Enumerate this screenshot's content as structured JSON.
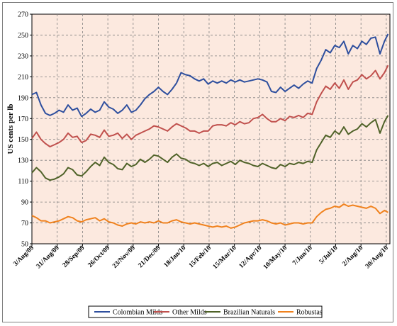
{
  "chart_data": {
    "type": "line",
    "ylabel": "US cents per lb",
    "xlabel": "",
    "title": "",
    "ylim": [
      50,
      270
    ],
    "yticks": [
      50,
      70,
      90,
      110,
      130,
      150,
      170,
      190,
      210,
      230,
      250,
      270
    ],
    "grid": true,
    "legend_position": "bottom",
    "x_tick_labels": [
      "3/Aug/09",
      "31/Aug/09",
      "28/Sep/09",
      "26/Oct/09",
      "23/Nov/09",
      "21/Dec/09",
      "18/Jan/10",
      "15/Feb/10",
      "15/Mar/10",
      "12/Apr/10",
      "10/May/10",
      "7/Jun/10",
      "5/Jul/10",
      "2/Aug/10",
      "30/Aug/10"
    ],
    "x_tick_days": [
      0,
      28,
      56,
      84,
      112,
      140,
      168,
      196,
      224,
      252,
      280,
      308,
      336,
      364,
      392
    ],
    "x_range_days": [
      0,
      396
    ],
    "series": [
      {
        "name": "Colombian Milds",
        "color": "#2e4f9e",
        "points": [
          [
            0,
            193
          ],
          [
            5,
            195
          ],
          [
            10,
            183
          ],
          [
            15,
            175
          ],
          [
            20,
            173
          ],
          [
            25,
            175
          ],
          [
            30,
            178
          ],
          [
            35,
            176
          ],
          [
            40,
            183
          ],
          [
            45,
            178
          ],
          [
            50,
            180
          ],
          [
            55,
            172
          ],
          [
            60,
            175
          ],
          [
            65,
            179
          ],
          [
            70,
            176
          ],
          [
            75,
            178
          ],
          [
            80,
            186
          ],
          [
            85,
            181
          ],
          [
            90,
            179
          ],
          [
            95,
            175
          ],
          [
            100,
            178
          ],
          [
            105,
            183
          ],
          [
            110,
            176
          ],
          [
            115,
            178
          ],
          [
            120,
            183
          ],
          [
            125,
            189
          ],
          [
            130,
            193
          ],
          [
            135,
            196
          ],
          [
            140,
            200
          ],
          [
            145,
            196
          ],
          [
            150,
            193
          ],
          [
            155,
            198
          ],
          [
            160,
            204
          ],
          [
            165,
            214
          ],
          [
            170,
            212
          ],
          [
            175,
            211
          ],
          [
            180,
            208
          ],
          [
            185,
            206
          ],
          [
            190,
            208
          ],
          [
            195,
            203
          ],
          [
            200,
            206
          ],
          [
            205,
            204
          ],
          [
            210,
            206
          ],
          [
            215,
            204
          ],
          [
            220,
            207
          ],
          [
            225,
            205
          ],
          [
            230,
            207
          ],
          [
            235,
            205
          ],
          [
            240,
            206
          ],
          [
            245,
            207
          ],
          [
            250,
            208
          ],
          [
            255,
            207
          ],
          [
            260,
            205
          ],
          [
            265,
            196
          ],
          [
            270,
            195
          ],
          [
            275,
            200
          ],
          [
            280,
            196
          ],
          [
            285,
            199
          ],
          [
            290,
            202
          ],
          [
            295,
            199
          ],
          [
            300,
            203
          ],
          [
            305,
            206
          ],
          [
            310,
            204
          ],
          [
            315,
            218
          ],
          [
            320,
            226
          ],
          [
            325,
            236
          ],
          [
            330,
            233
          ],
          [
            335,
            240
          ],
          [
            340,
            238
          ],
          [
            345,
            244
          ],
          [
            350,
            232
          ],
          [
            355,
            240
          ],
          [
            360,
            237
          ],
          [
            365,
            244
          ],
          [
            370,
            241
          ],
          [
            375,
            247
          ],
          [
            380,
            248
          ],
          [
            385,
            232
          ],
          [
            390,
            244
          ],
          [
            394,
            251
          ]
        ]
      },
      {
        "name": "Other Milds",
        "color": "#c0504d",
        "points": [
          [
            0,
            151
          ],
          [
            5,
            157
          ],
          [
            10,
            150
          ],
          [
            15,
            146
          ],
          [
            20,
            143
          ],
          [
            25,
            145
          ],
          [
            30,
            147
          ],
          [
            35,
            150
          ],
          [
            40,
            156
          ],
          [
            45,
            152
          ],
          [
            50,
            153
          ],
          [
            55,
            147
          ],
          [
            60,
            149
          ],
          [
            65,
            155
          ],
          [
            70,
            154
          ],
          [
            75,
            152
          ],
          [
            80,
            159
          ],
          [
            85,
            153
          ],
          [
            90,
            154
          ],
          [
            95,
            156
          ],
          [
            100,
            151
          ],
          [
            105,
            155
          ],
          [
            110,
            150
          ],
          [
            115,
            154
          ],
          [
            120,
            156
          ],
          [
            125,
            158
          ],
          [
            130,
            160
          ],
          [
            135,
            163
          ],
          [
            140,
            162
          ],
          [
            145,
            160
          ],
          [
            150,
            158
          ],
          [
            155,
            162
          ],
          [
            160,
            165
          ],
          [
            165,
            163
          ],
          [
            170,
            161
          ],
          [
            175,
            158
          ],
          [
            180,
            158
          ],
          [
            185,
            156
          ],
          [
            190,
            158
          ],
          [
            195,
            158
          ],
          [
            200,
            163
          ],
          [
            205,
            164
          ],
          [
            210,
            164
          ],
          [
            215,
            163
          ],
          [
            220,
            166
          ],
          [
            225,
            164
          ],
          [
            230,
            167
          ],
          [
            235,
            165
          ],
          [
            240,
            166
          ],
          [
            245,
            170
          ],
          [
            250,
            171
          ],
          [
            255,
            174
          ],
          [
            260,
            170
          ],
          [
            265,
            167
          ],
          [
            270,
            167
          ],
          [
            275,
            170
          ],
          [
            280,
            168
          ],
          [
            285,
            172
          ],
          [
            290,
            171
          ],
          [
            295,
            173
          ],
          [
            300,
            171
          ],
          [
            305,
            175
          ],
          [
            310,
            174
          ],
          [
            315,
            186
          ],
          [
            320,
            194
          ],
          [
            325,
            201
          ],
          [
            330,
            198
          ],
          [
            335,
            204
          ],
          [
            340,
            199
          ],
          [
            345,
            207
          ],
          [
            350,
            198
          ],
          [
            355,
            205
          ],
          [
            360,
            207
          ],
          [
            365,
            212
          ],
          [
            370,
            208
          ],
          [
            375,
            211
          ],
          [
            380,
            216
          ],
          [
            385,
            208
          ],
          [
            390,
            214
          ],
          [
            394,
            221
          ]
        ]
      },
      {
        "name": "Brazilian Naturals",
        "color": "#4f6228",
        "points": [
          [
            0,
            118
          ],
          [
            5,
            123
          ],
          [
            10,
            119
          ],
          [
            15,
            113
          ],
          [
            20,
            111
          ],
          [
            25,
            112
          ],
          [
            30,
            114
          ],
          [
            35,
            117
          ],
          [
            40,
            123
          ],
          [
            45,
            121
          ],
          [
            50,
            116
          ],
          [
            55,
            115
          ],
          [
            60,
            119
          ],
          [
            65,
            124
          ],
          [
            70,
            128
          ],
          [
            75,
            125
          ],
          [
            80,
            133
          ],
          [
            85,
            128
          ],
          [
            90,
            126
          ],
          [
            95,
            122
          ],
          [
            100,
            121
          ],
          [
            105,
            127
          ],
          [
            110,
            124
          ],
          [
            115,
            126
          ],
          [
            120,
            131
          ],
          [
            125,
            128
          ],
          [
            130,
            131
          ],
          [
            135,
            135
          ],
          [
            140,
            134
          ],
          [
            145,
            131
          ],
          [
            150,
            128
          ],
          [
            155,
            133
          ],
          [
            160,
            136
          ],
          [
            165,
            132
          ],
          [
            170,
            131
          ],
          [
            175,
            128
          ],
          [
            180,
            127
          ],
          [
            185,
            125
          ],
          [
            190,
            127
          ],
          [
            195,
            124
          ],
          [
            200,
            127
          ],
          [
            205,
            128
          ],
          [
            210,
            125
          ],
          [
            215,
            127
          ],
          [
            220,
            129
          ],
          [
            225,
            126
          ],
          [
            230,
            130
          ],
          [
            235,
            128
          ],
          [
            240,
            127
          ],
          [
            245,
            125
          ],
          [
            250,
            124
          ],
          [
            255,
            127
          ],
          [
            260,
            125
          ],
          [
            265,
            123
          ],
          [
            270,
            122
          ],
          [
            275,
            126
          ],
          [
            280,
            124
          ],
          [
            285,
            127
          ],
          [
            290,
            126
          ],
          [
            295,
            128
          ],
          [
            300,
            127
          ],
          [
            305,
            129
          ],
          [
            310,
            128
          ],
          [
            315,
            140
          ],
          [
            320,
            147
          ],
          [
            325,
            154
          ],
          [
            330,
            152
          ],
          [
            335,
            158
          ],
          [
            340,
            155
          ],
          [
            345,
            162
          ],
          [
            350,
            155
          ],
          [
            355,
            158
          ],
          [
            360,
            160
          ],
          [
            365,
            165
          ],
          [
            370,
            162
          ],
          [
            375,
            166
          ],
          [
            380,
            169
          ],
          [
            385,
            156
          ],
          [
            390,
            167
          ],
          [
            394,
            173
          ]
        ]
      },
      {
        "name": "Robustas",
        "color": "#f0821e",
        "points": [
          [
            0,
            77
          ],
          [
            5,
            75
          ],
          [
            10,
            72
          ],
          [
            15,
            72
          ],
          [
            20,
            70
          ],
          [
            25,
            71
          ],
          [
            30,
            72
          ],
          [
            35,
            74
          ],
          [
            40,
            76
          ],
          [
            45,
            75
          ],
          [
            50,
            72
          ],
          [
            55,
            71
          ],
          [
            60,
            73
          ],
          [
            65,
            74
          ],
          [
            70,
            75
          ],
          [
            75,
            72
          ],
          [
            80,
            74
          ],
          [
            85,
            71
          ],
          [
            90,
            70
          ],
          [
            95,
            68
          ],
          [
            100,
            67
          ],
          [
            105,
            69
          ],
          [
            110,
            70
          ],
          [
            115,
            69
          ],
          [
            120,
            71
          ],
          [
            125,
            70
          ],
          [
            130,
            71
          ],
          [
            135,
            70
          ],
          [
            140,
            72
          ],
          [
            145,
            70
          ],
          [
            150,
            70
          ],
          [
            155,
            72
          ],
          [
            160,
            73
          ],
          [
            165,
            71
          ],
          [
            170,
            70
          ],
          [
            175,
            69
          ],
          [
            180,
            70
          ],
          [
            185,
            69
          ],
          [
            190,
            68
          ],
          [
            195,
            67
          ],
          [
            200,
            66
          ],
          [
            205,
            67
          ],
          [
            210,
            66
          ],
          [
            215,
            67
          ],
          [
            220,
            65
          ],
          [
            225,
            66
          ],
          [
            230,
            68
          ],
          [
            235,
            70
          ],
          [
            240,
            71
          ],
          [
            245,
            72
          ],
          [
            250,
            72
          ],
          [
            255,
            73
          ],
          [
            260,
            72
          ],
          [
            265,
            70
          ],
          [
            270,
            69
          ],
          [
            275,
            70
          ],
          [
            280,
            68
          ],
          [
            285,
            69
          ],
          [
            290,
            70
          ],
          [
            295,
            70
          ],
          [
            300,
            69
          ],
          [
            305,
            70
          ],
          [
            310,
            70
          ],
          [
            315,
            76
          ],
          [
            320,
            80
          ],
          [
            325,
            83
          ],
          [
            330,
            84
          ],
          [
            335,
            86
          ],
          [
            340,
            85
          ],
          [
            345,
            88
          ],
          [
            350,
            86
          ],
          [
            355,
            87
          ],
          [
            360,
            86
          ],
          [
            365,
            85
          ],
          [
            370,
            84
          ],
          [
            375,
            86
          ],
          [
            380,
            84
          ],
          [
            385,
            79
          ],
          [
            390,
            82
          ],
          [
            394,
            80
          ]
        ]
      }
    ]
  }
}
